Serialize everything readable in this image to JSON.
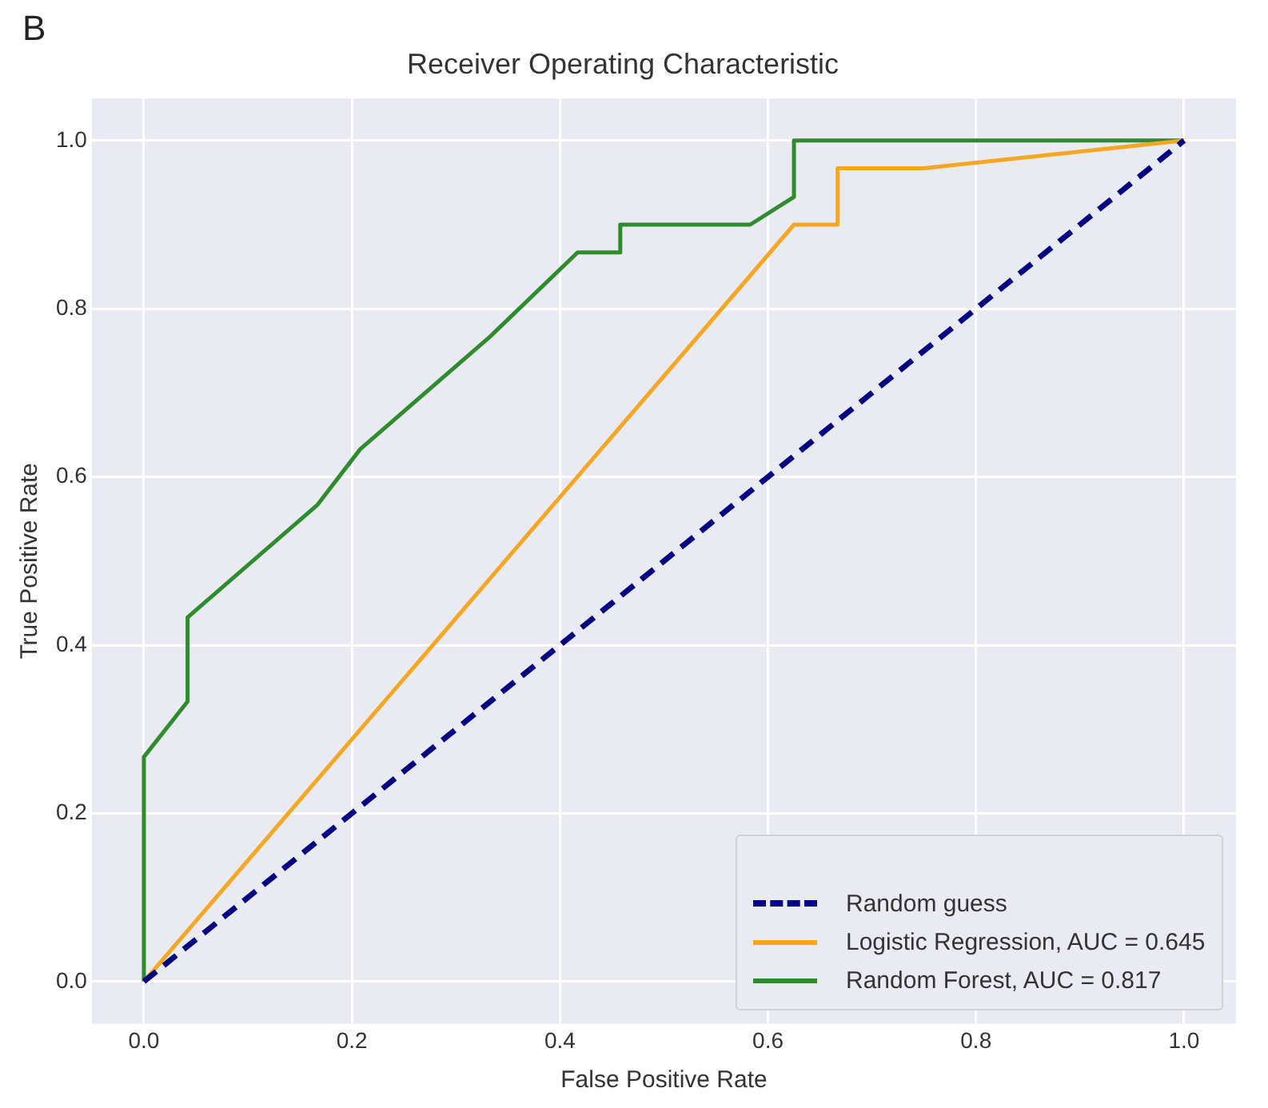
{
  "chart_data": {
    "type": "line",
    "title": "Receiver Operating Characteristic",
    "xlabel": "False Positive Rate",
    "ylabel": "True Positive Rate",
    "annotations": [
      "B"
    ],
    "series": [
      {
        "name": "Random guess",
        "color": "#000080",
        "line_style": "dashed",
        "x": [
          0,
          1
        ],
        "values": [
          0,
          1
        ]
      },
      {
        "name": "Logistic Regression, AUC = 0.645",
        "color": "#f5a623",
        "line_style": "solid",
        "x": [
          0,
          0.625,
          0.667,
          0.667,
          0.75,
          1
        ],
        "values": [
          0,
          0.9,
          0.9,
          0.967,
          0.967,
          1
        ]
      },
      {
        "name": "Random Forest, AUC = 0.817",
        "color": "#2e8b2e",
        "line_style": "solid",
        "x": [
          0,
          0,
          0.042,
          0.042,
          0.167,
          0.208,
          0.333,
          0.417,
          0.458,
          0.458,
          0.583,
          0.625,
          0.625,
          1
        ],
        "values": [
          0,
          0.267,
          0.333,
          0.433,
          0.567,
          0.633,
          0.767,
          0.867,
          0.867,
          0.9,
          0.9,
          0.933,
          1,
          1
        ]
      }
    ],
    "xlim": [
      -0.05,
      1.05
    ],
    "ylim": [
      -0.05,
      1.05
    ],
    "xticks": [
      {
        "value": 0,
        "label": "0.0"
      },
      {
        "value": 0.2,
        "label": "0.2"
      },
      {
        "value": 0.4,
        "label": "0.4"
      },
      {
        "value": 0.6,
        "label": "0.6"
      },
      {
        "value": 0.8,
        "label": "0.8"
      },
      {
        "value": 1,
        "label": "1.0"
      }
    ],
    "yticks": [
      {
        "value": 0,
        "label": "0.0"
      },
      {
        "value": 0.2,
        "label": "0.2"
      },
      {
        "value": 0.4,
        "label": "0.4"
      },
      {
        "value": 0.6,
        "label": "0.6"
      },
      {
        "value": 0.8,
        "label": "0.8"
      },
      {
        "value": 1,
        "label": "1.0"
      }
    ],
    "grid": true,
    "legend": "bottom right",
    "marker": "none"
  }
}
